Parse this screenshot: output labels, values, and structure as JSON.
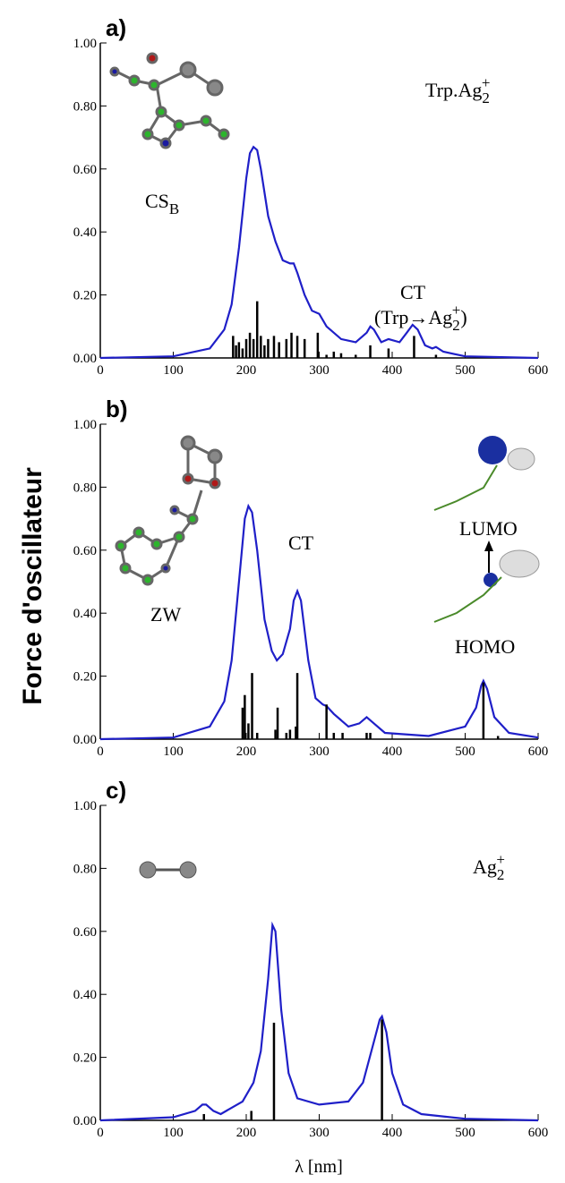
{
  "axis_labels": {
    "y": "Force d'oscillateur",
    "x": "λ [nm]"
  },
  "chart_data": [
    {
      "type": "line",
      "label": "a)",
      "xlim": [
        0,
        600
      ],
      "xticks": [
        0,
        100,
        200,
        300,
        400,
        500,
        600
      ],
      "ylim": [
        0,
        1
      ],
      "yticks": [
        {
          "value": 0,
          "label": "0.00"
        },
        {
          "value": 0.2,
          "label": "0.20"
        },
        {
          "value": 0.4,
          "label": "0.40"
        },
        {
          "value": 0.6,
          "label": "0.60"
        },
        {
          "value": 0.8,
          "label": "0.80"
        },
        {
          "value": 1,
          "label": "1.00"
        }
      ],
      "annotations": [
        {
          "text": "Trp.Ag",
          "sub": "2",
          "sup": "+"
        },
        {
          "text": "CS",
          "sub": "B"
        },
        {
          "text": "CT"
        },
        {
          "text": "(Trp→Ag",
          "sub": "2",
          "sup": "+",
          "after": ")"
        }
      ],
      "series": [
        {
          "color": "#1f1fc8",
          "x": [
            0,
            100,
            150,
            170,
            180,
            190,
            200,
            205,
            210,
            215,
            220,
            230,
            240,
            250,
            260,
            265,
            270,
            280,
            290,
            300,
            310,
            330,
            350,
            365,
            370,
            375,
            385,
            395,
            410,
            420,
            428,
            435,
            445,
            455,
            460,
            470,
            500,
            600
          ],
          "values": [
            0,
            0.005,
            0.03,
            0.09,
            0.17,
            0.35,
            0.57,
            0.65,
            0.67,
            0.66,
            0.6,
            0.45,
            0.37,
            0.31,
            0.3,
            0.3,
            0.27,
            0.2,
            0.15,
            0.14,
            0.1,
            0.06,
            0.05,
            0.08,
            0.1,
            0.09,
            0.05,
            0.06,
            0.05,
            0.08,
            0.105,
            0.09,
            0.04,
            0.03,
            0.035,
            0.02,
            0.005,
            0
          ]
        },
        {
          "type": "stem",
          "color": "#000000",
          "x": [
            182,
            186,
            190,
            195,
            200,
            205,
            210,
            215,
            220,
            225,
            230,
            238,
            245,
            255,
            262,
            270,
            280,
            298,
            310,
            320,
            330,
            350,
            370,
            395,
            430,
            460
          ],
          "values": [
            0.07,
            0.04,
            0.05,
            0.03,
            0.06,
            0.08,
            0.06,
            0.18,
            0.07,
            0.04,
            0.06,
            0.07,
            0.05,
            0.06,
            0.08,
            0.07,
            0.06,
            0.08,
            0.01,
            0.02,
            0.015,
            0.01,
            0.04,
            0.03,
            0.07,
            0.01
          ]
        }
      ]
    },
    {
      "type": "line",
      "label": "b)",
      "xlim": [
        0,
        600
      ],
      "xticks": [
        0,
        100,
        200,
        300,
        400,
        500,
        600
      ],
      "ylim": [
        0,
        1
      ],
      "yticks": [
        {
          "value": 0,
          "label": "0.00"
        },
        {
          "value": 0.2,
          "label": "0.20"
        },
        {
          "value": 0.4,
          "label": "0.40"
        },
        {
          "value": 0.6,
          "label": "0.60"
        },
        {
          "value": 0.8,
          "label": "0.80"
        },
        {
          "value": 1,
          "label": "1.00"
        }
      ],
      "annotations": [
        {
          "text": "ZW"
        },
        {
          "text": "CT"
        },
        {
          "text": "LUMO"
        },
        {
          "text": "HOMO"
        }
      ],
      "series": [
        {
          "color": "#1f1fc8",
          "x": [
            0,
            100,
            150,
            170,
            180,
            190,
            198,
            203,
            208,
            215,
            225,
            235,
            242,
            250,
            260,
            265,
            270,
            275,
            285,
            295,
            305,
            310,
            320,
            340,
            355,
            365,
            375,
            390,
            450,
            500,
            515,
            522,
            525,
            530,
            540,
            560,
            600
          ],
          "values": [
            0,
            0.005,
            0.04,
            0.12,
            0.25,
            0.5,
            0.7,
            0.74,
            0.72,
            0.6,
            0.38,
            0.28,
            0.25,
            0.27,
            0.35,
            0.44,
            0.47,
            0.44,
            0.25,
            0.13,
            0.11,
            0.105,
            0.08,
            0.04,
            0.05,
            0.07,
            0.05,
            0.02,
            0.01,
            0.04,
            0.1,
            0.17,
            0.185,
            0.16,
            0.07,
            0.02,
            0.005
          ]
        },
        {
          "type": "stem",
          "color": "#000000",
          "x": [
            195,
            198,
            203,
            208,
            215,
            240,
            243,
            255,
            260,
            268,
            270,
            310,
            320,
            332,
            365,
            370,
            525,
            545
          ],
          "values": [
            0.1,
            0.14,
            0.05,
            0.21,
            0.02,
            0.03,
            0.1,
            0.02,
            0.03,
            0.04,
            0.21,
            0.11,
            0.02,
            0.02,
            0.02,
            0.02,
            0.18,
            0.01
          ]
        }
      ]
    },
    {
      "type": "line",
      "label": "c)",
      "xlim": [
        0,
        600
      ],
      "xticks": [
        0,
        100,
        200,
        300,
        400,
        500,
        600
      ],
      "ylim": [
        0,
        1
      ],
      "yticks": [
        {
          "value": 0,
          "label": "0.00"
        },
        {
          "value": 0.2,
          "label": "0.20"
        },
        {
          "value": 0.4,
          "label": "0.40"
        },
        {
          "value": 0.6,
          "label": "0.60"
        },
        {
          "value": 0.8,
          "label": "0.80"
        },
        {
          "value": 1,
          "label": "1.00"
        }
      ],
      "annotations": [
        {
          "text": "Ag",
          "sub": "2",
          "sup": "+"
        }
      ],
      "series": [
        {
          "color": "#1f1fc8",
          "x": [
            0,
            100,
            130,
            140,
            145,
            155,
            165,
            180,
            195,
            210,
            220,
            230,
            236,
            240,
            248,
            258,
            270,
            300,
            340,
            360,
            375,
            383,
            386,
            392,
            400,
            415,
            440,
            500,
            600
          ],
          "values": [
            0,
            0.01,
            0.03,
            0.05,
            0.05,
            0.03,
            0.02,
            0.04,
            0.06,
            0.12,
            0.22,
            0.45,
            0.62,
            0.6,
            0.35,
            0.15,
            0.07,
            0.05,
            0.06,
            0.12,
            0.25,
            0.32,
            0.33,
            0.28,
            0.15,
            0.05,
            0.02,
            0.005,
            0
          ]
        },
        {
          "type": "stem",
          "color": "#000000",
          "x": [
            142,
            207,
            238,
            386
          ],
          "values": [
            0.02,
            0.03,
            0.31,
            0.32
          ]
        }
      ]
    }
  ]
}
